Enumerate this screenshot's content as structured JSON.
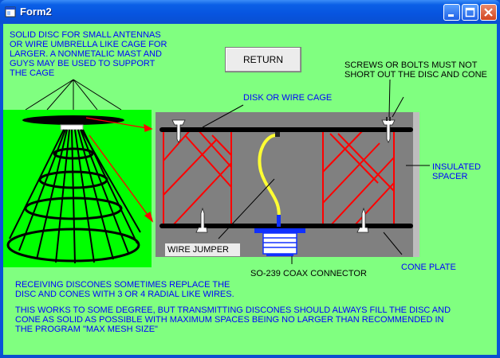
{
  "window": {
    "title": "Form2"
  },
  "buttons": {
    "return_label": "RETURN"
  },
  "labels": {
    "intro": "SOLID DISC FOR SMALL ANTENNAS\nOR WIRE UMBRELLA LIKE CAGE FOR\nLARGER. A NONMETALIC MAST AND\nGUYS MAY BE USED TO SUPPORT\nTHE CAGE",
    "screws": "SCREWS OR BOLTS MUST NOT\nSHORT OUT THE DISC AND CONE",
    "disk_cage": "DISK OR WIRE CAGE",
    "insulated_spacer": "INSULATED\nSPACER",
    "wire_jumper": "WIRE JUMPER",
    "coax_connector": "SO-239 COAX CONNECTOR",
    "cone_plate": "CONE PLATE",
    "receiving": "RECEIVING DISCONES SOMETIMES REPLACE THE\nDISC AND CONES WITH 3 OR 4 RADIAL LIKE WIRES.",
    "transmitting": "THIS WORKS TO SOME DEGREE, BUT TRANSMITTING DISCONES SHOULD ALWAYS FILL THE DISC AND\nCONE AS SOLID AS POSSIBLE WITH MAXIMUM SPACES BEING NO LARGER THAN RECOMMENDED IN\nTHE PROGRAM \"MAX MESH SIZE\""
  },
  "colors": {
    "form_background": "#80ff80",
    "antenna_panel": "#00ff00",
    "detail_panel": "#808080",
    "label_text": "#0000ff",
    "cage_wire": "#ff0000",
    "jumper_wire": "#ffff00"
  },
  "icons": [
    "app-icon",
    "minimize-icon",
    "maximize-icon",
    "close-icon"
  ]
}
